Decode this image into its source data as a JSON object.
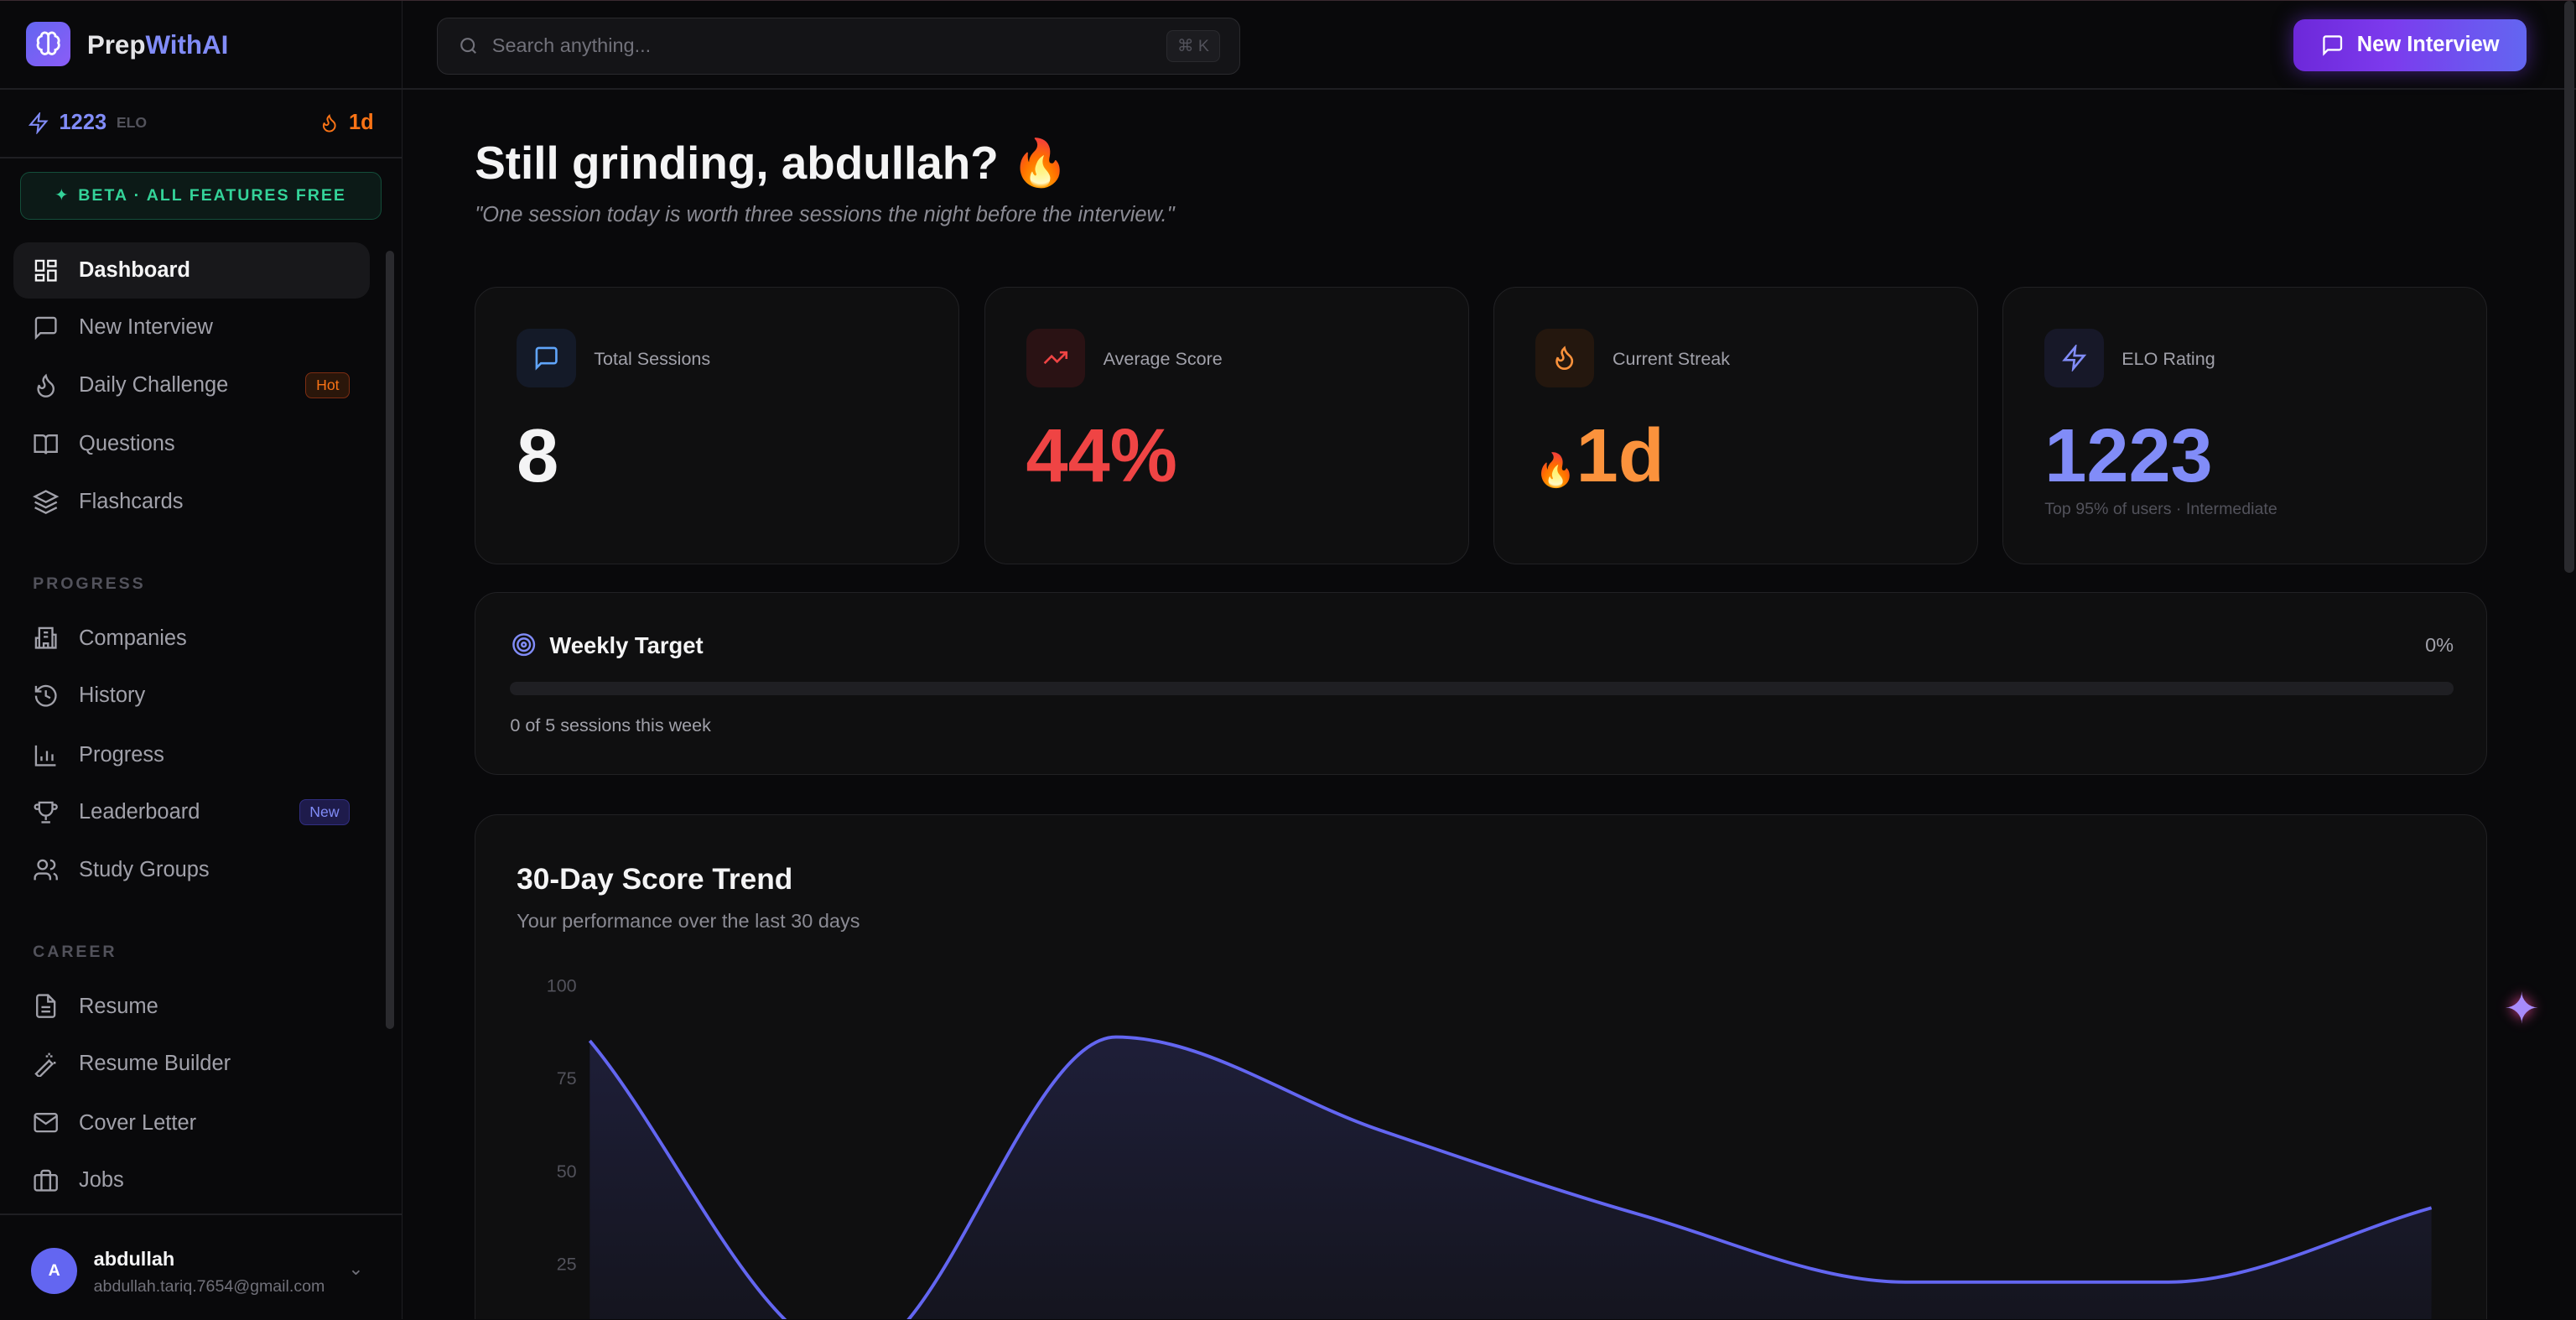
{
  "brand": {
    "part1": "Prep",
    "part2": "WithAI"
  },
  "elo": {
    "value": "1223",
    "label": "ELO",
    "streak": "1d"
  },
  "beta_banner": "BETA · ALL FEATURES FREE",
  "nav": {
    "main": [
      {
        "label": "Dashboard",
        "icon": "layout-grid-icon",
        "active": true
      },
      {
        "label": "New Interview",
        "icon": "message-square-icon"
      },
      {
        "label": "Daily Challenge",
        "icon": "flame-icon",
        "badge": "Hot"
      },
      {
        "label": "Questions",
        "icon": "book-open-icon"
      },
      {
        "label": "Flashcards",
        "icon": "layers-icon"
      }
    ],
    "progress_label": "PROGRESS",
    "progress": [
      {
        "label": "Companies",
        "icon": "building-icon"
      },
      {
        "label": "History",
        "icon": "history-icon"
      },
      {
        "label": "Progress",
        "icon": "bar-chart-icon"
      },
      {
        "label": "Leaderboard",
        "icon": "trophy-icon",
        "badge": "New"
      },
      {
        "label": "Study Groups",
        "icon": "users-icon"
      }
    ],
    "career_label": "CAREER",
    "career": [
      {
        "label": "Resume",
        "icon": "file-text-icon"
      },
      {
        "label": "Resume Builder",
        "icon": "wand-icon"
      },
      {
        "label": "Cover Letter",
        "icon": "mail-icon"
      },
      {
        "label": "Jobs",
        "icon": "briefcase-icon"
      }
    ]
  },
  "user": {
    "initial": "A",
    "name": "abdullah",
    "email": "abdullah.tariq.7654@gmail.com"
  },
  "header": {
    "search_placeholder": "Search anything...",
    "shortcut": "⌘ K",
    "new_interview": "New Interview"
  },
  "greeting": {
    "title": "Still grinding, abdullah? 🔥",
    "quote": "\"One session today is worth three sessions the night before the interview.\""
  },
  "stats": [
    {
      "label": "Total Sessions",
      "value": "8",
      "color": "#f4f4f5"
    },
    {
      "label": "Average Score",
      "value": "44%",
      "color": "#ef4444"
    },
    {
      "label": "Current Streak",
      "value": "1d",
      "color": "#fb923c",
      "emoji": "🔥"
    },
    {
      "label": "ELO Rating",
      "value": "1223",
      "color": "#818cf8",
      "sub": "Top 95% of users · Intermediate"
    }
  ],
  "weekly": {
    "title": "Weekly Target",
    "percent_label": "0%",
    "progress": 0,
    "caption": "0 of 5 sessions this week"
  },
  "chart_data": {
    "type": "area",
    "title": "30-Day Score Trend",
    "subtitle": "Your performance over the last 30 days",
    "y_ticks": [
      "100",
      "75",
      "50",
      "25"
    ],
    "ylim": [
      0,
      100
    ],
    "values": [
      85,
      0,
      86,
      61,
      38,
      20,
      20,
      40
    ],
    "color": "#6366f1"
  }
}
